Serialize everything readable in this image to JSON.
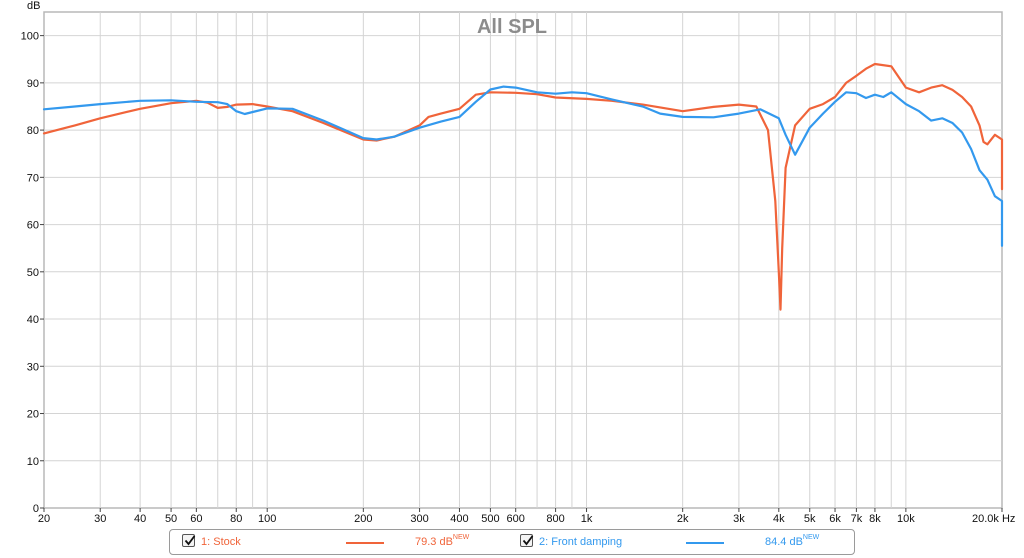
{
  "chart_data": {
    "type": "line",
    "title": "All SPL",
    "ylabel": "dB",
    "xunit": "Hz",
    "xscale": "log",
    "xlim": [
      20,
      20000
    ],
    "ylim": [
      0,
      105
    ],
    "yticks": [
      0,
      10,
      20,
      30,
      40,
      50,
      60,
      70,
      80,
      90,
      100
    ],
    "xticks": [
      {
        "v": 20,
        "label": "20"
      },
      {
        "v": 30,
        "label": "30"
      },
      {
        "v": 40,
        "label": "40"
      },
      {
        "v": 50,
        "label": "50"
      },
      {
        "v": 60,
        "label": "60"
      },
      {
        "v": 80,
        "label": "80"
      },
      {
        "v": 100,
        "label": "100"
      },
      {
        "v": 200,
        "label": "200"
      },
      {
        "v": 300,
        "label": "300"
      },
      {
        "v": 400,
        "label": "400"
      },
      {
        "v": 500,
        "label": "500"
      },
      {
        "v": 600,
        "label": "600"
      },
      {
        "v": 800,
        "label": "800"
      },
      {
        "v": 1000,
        "label": "1k"
      },
      {
        "v": 2000,
        "label": "2k"
      },
      {
        "v": 3000,
        "label": "3k"
      },
      {
        "v": 4000,
        "label": "4k"
      },
      {
        "v": 5000,
        "label": "5k"
      },
      {
        "v": 6000,
        "label": "6k"
      },
      {
        "v": 7000,
        "label": "7k"
      },
      {
        "v": 8000,
        "label": "8k"
      },
      {
        "v": 10000,
        "label": "10k"
      },
      {
        "v": 20000,
        "label": "20.0k Hz"
      }
    ],
    "minor_grid": [
      70,
      90,
      700,
      900,
      9000
    ],
    "grid": true,
    "series": [
      {
        "name": "1: Stock",
        "color": "#f0643a",
        "level": "79.3 dB",
        "points": [
          [
            20,
            79.3
          ],
          [
            25,
            81
          ],
          [
            30,
            82.5
          ],
          [
            40,
            84.5
          ],
          [
            50,
            85.7
          ],
          [
            60,
            86.2
          ],
          [
            65,
            85.8
          ],
          [
            70,
            84.7
          ],
          [
            75,
            84.9
          ],
          [
            80,
            85.4
          ],
          [
            90,
            85.5
          ],
          [
            100,
            85.0
          ],
          [
            120,
            84.0
          ],
          [
            150,
            81.5
          ],
          [
            200,
            78.0
          ],
          [
            220,
            77.8
          ],
          [
            250,
            78.6
          ],
          [
            300,
            81.0
          ],
          [
            320,
            82.8
          ],
          [
            350,
            83.5
          ],
          [
            400,
            84.5
          ],
          [
            450,
            87.5
          ],
          [
            500,
            88.0
          ],
          [
            600,
            87.9
          ],
          [
            700,
            87.6
          ],
          [
            800,
            86.9
          ],
          [
            1000,
            86.6
          ],
          [
            1200,
            86.2
          ],
          [
            1500,
            85.4
          ],
          [
            2000,
            84.0
          ],
          [
            2500,
            84.9
          ],
          [
            3000,
            85.4
          ],
          [
            3400,
            85.0
          ],
          [
            3700,
            80.0
          ],
          [
            3900,
            65.0
          ],
          [
            4000,
            50.0
          ],
          [
            4050,
            42.0
          ],
          [
            4100,
            55.0
          ],
          [
            4200,
            72.0
          ],
          [
            4500,
            81.0
          ],
          [
            5000,
            84.5
          ],
          [
            5500,
            85.5
          ],
          [
            6000,
            87.0
          ],
          [
            6500,
            90.0
          ],
          [
            7000,
            91.5
          ],
          [
            7500,
            93.0
          ],
          [
            8000,
            94.0
          ],
          [
            9000,
            93.5
          ],
          [
            10000,
            89.0
          ],
          [
            11000,
            88.0
          ],
          [
            12000,
            89.0
          ],
          [
            13000,
            89.5
          ],
          [
            14000,
            88.5
          ],
          [
            15000,
            87.0
          ],
          [
            16000,
            85.0
          ],
          [
            17000,
            81.0
          ],
          [
            17500,
            77.5
          ],
          [
            18000,
            77.0
          ],
          [
            19000,
            79.0
          ],
          [
            20000,
            78.0
          ],
          [
            21000,
            73.0
          ],
          [
            21500,
            67.5
          ]
        ]
      },
      {
        "name": "2: Front damping",
        "color": "#3399ee",
        "level": "84.4 dB",
        "points": [
          [
            20,
            84.4
          ],
          [
            25,
            85.0
          ],
          [
            30,
            85.5
          ],
          [
            40,
            86.2
          ],
          [
            50,
            86.3
          ],
          [
            60,
            86.0
          ],
          [
            70,
            85.9
          ],
          [
            75,
            85.5
          ],
          [
            80,
            84.0
          ],
          [
            85,
            83.4
          ],
          [
            100,
            84.6
          ],
          [
            120,
            84.5
          ],
          [
            150,
            82.0
          ],
          [
            200,
            78.3
          ],
          [
            220,
            78.0
          ],
          [
            250,
            78.6
          ],
          [
            300,
            80.5
          ],
          [
            350,
            81.8
          ],
          [
            400,
            82.8
          ],
          [
            450,
            86.0
          ],
          [
            500,
            88.6
          ],
          [
            550,
            89.2
          ],
          [
            600,
            89.0
          ],
          [
            700,
            88.0
          ],
          [
            800,
            87.7
          ],
          [
            900,
            88.0
          ],
          [
            1000,
            87.8
          ],
          [
            1200,
            86.5
          ],
          [
            1500,
            85.0
          ],
          [
            1700,
            83.5
          ],
          [
            2000,
            82.8
          ],
          [
            2500,
            82.7
          ],
          [
            2800,
            83.2
          ],
          [
            3000,
            83.5
          ],
          [
            3500,
            84.4
          ],
          [
            4000,
            82.5
          ],
          [
            4200,
            79.0
          ],
          [
            4500,
            74.8
          ],
          [
            5000,
            80.5
          ],
          [
            5500,
            83.5
          ],
          [
            6000,
            86.0
          ],
          [
            6500,
            88.0
          ],
          [
            7000,
            87.8
          ],
          [
            7500,
            86.8
          ],
          [
            8000,
            87.5
          ],
          [
            8500,
            87.0
          ],
          [
            9000,
            88.0
          ],
          [
            10000,
            85.5
          ],
          [
            11000,
            84.0
          ],
          [
            12000,
            82.0
          ],
          [
            13000,
            82.5
          ],
          [
            14000,
            81.5
          ],
          [
            15000,
            79.5
          ],
          [
            16000,
            76.0
          ],
          [
            17000,
            71.5
          ],
          [
            18000,
            69.5
          ],
          [
            19000,
            66.0
          ],
          [
            20000,
            65.0
          ],
          [
            21000,
            60.0
          ],
          [
            21500,
            55.5
          ]
        ]
      }
    ]
  },
  "legend": {
    "items": [
      {
        "label": "1: Stock",
        "value": "79.3 dB",
        "badge": "NEW"
      },
      {
        "label": "2: Front damping",
        "value": "84.4 dB",
        "badge": "NEW"
      }
    ]
  }
}
